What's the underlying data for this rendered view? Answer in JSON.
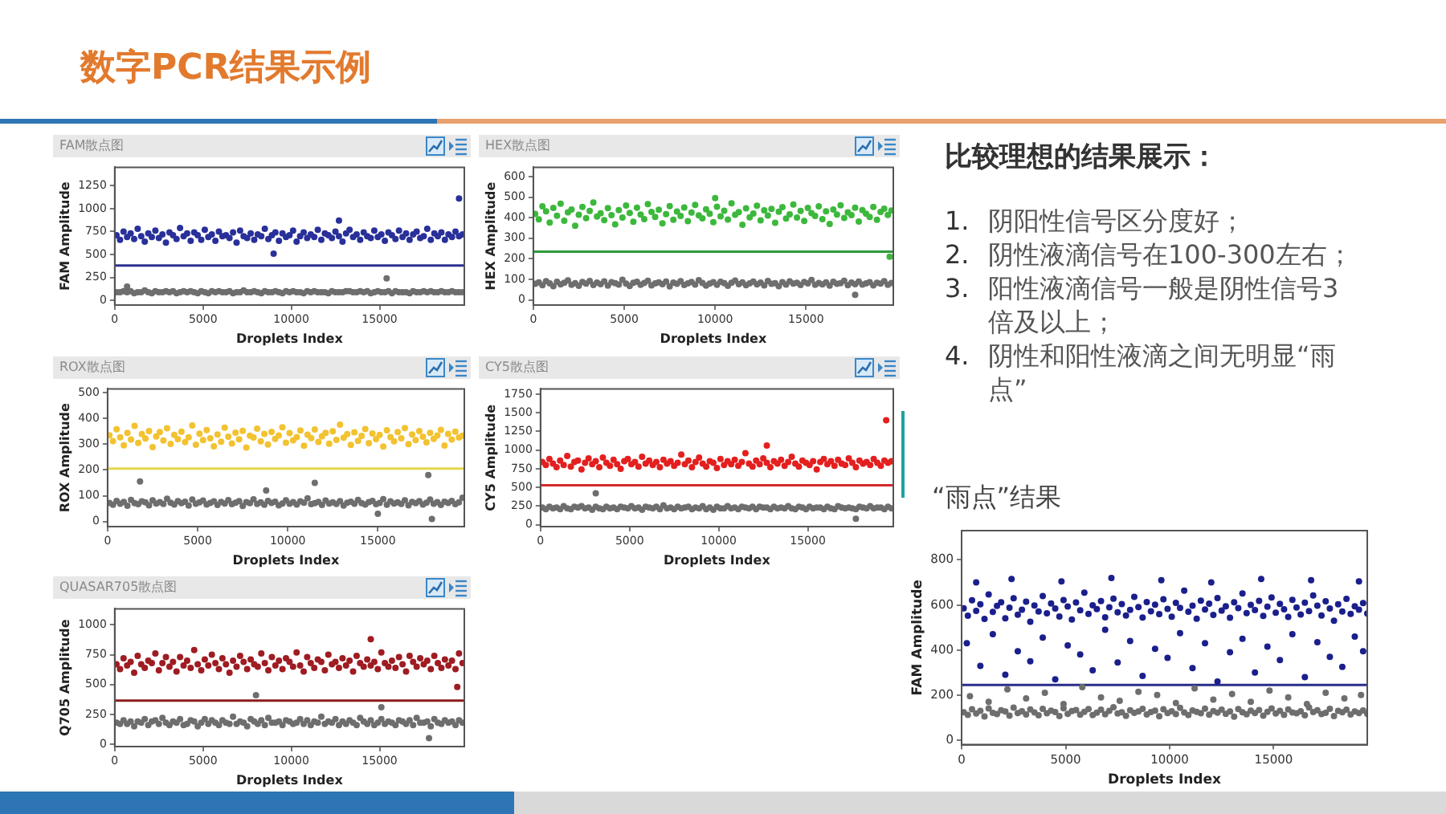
{
  "chart_data": [
    {
      "type": "other",
      "title": "数字PCR结果示例"
    },
    {
      "type": "scatter",
      "title": "FAM散点图",
      "xlabel": "Droplets Index",
      "ylabel": "FAM Amplitude",
      "marker": "circle",
      "xlim": [
        0,
        19800
      ],
      "ylim": [
        -50,
        1450
      ],
      "xticks": [
        0,
        5000,
        10000,
        15000
      ],
      "yticks": [
        0,
        250,
        500,
        750,
        1000,
        1250
      ],
      "ref_lines": [
        {
          "axis": "y",
          "value": 380,
          "color": "#2b2f8f"
        }
      ],
      "x": [
        100,
        300,
        500,
        700,
        900,
        1100,
        1300,
        1500,
        1700,
        1900,
        2100,
        2300,
        2500,
        2700,
        2900,
        3100,
        3300,
        3500,
        3700,
        3900,
        4100,
        4300,
        4500,
        4700,
        4900,
        5100,
        5300,
        5500,
        5700,
        5900,
        6100,
        6300,
        6500,
        6700,
        6900,
        7100,
        7300,
        7500,
        7700,
        7900,
        8100,
        8300,
        8500,
        8700,
        8900,
        9100,
        9300,
        9500,
        9700,
        9900,
        10100,
        10300,
        10500,
        10700,
        10900,
        11100,
        11300,
        11500,
        11700,
        11900,
        12100,
        12300,
        12500,
        12700,
        12900,
        13100,
        13300,
        13500,
        13700,
        13900,
        14100,
        14300,
        14500,
        14700,
        14900,
        15100,
        15300,
        15500,
        15700,
        15900,
        16100,
        16300,
        16500,
        16700,
        16900,
        17100,
        17300,
        17500,
        17700,
        17900,
        18100,
        18300,
        18500,
        18700,
        18900,
        19100,
        19300,
        19500,
        19700,
        19500,
        12700,
        9000,
        15400,
        700
      ],
      "series": [
        {
          "color": "#29309a",
          "values": [
            710,
            660,
            750,
            690,
            730,
            670,
            780,
            700,
            640,
            730,
            690,
            760,
            680,
            720,
            630,
            740,
            710,
            670,
            790,
            700,
            730,
            650,
            740,
            710,
            660,
            770,
            690,
            720,
            650,
            750,
            700,
            710,
            680,
            740,
            630,
            760,
            700,
            680,
            730,
            660,
            720,
            700,
            780,
            670,
            710,
            740,
            650,
            730,
            690,
            710,
            760,
            640,
            700,
            740,
            680,
            720,
            690,
            770,
            660,
            730,
            710,
            680,
            750,
            700,
            640,
            730,
            770,
            690,
            720,
            660,
            740,
            700,
            680,
            760,
            690,
            720,
            650,
            740,
            710,
            670,
            760,
            690,
            730,
            660,
            720,
            750,
            680,
            700,
            780,
            660,
            730,
            700,
            740,
            660,
            720,
            690,
            750,
            700,
            720,
            1110,
            870,
            510,
            null,
            null
          ]
        },
        {
          "color": "#6e6e6e",
          "values": [
            90,
            90,
            100,
            90,
            100,
            80,
            90,
            90,
            110,
            90,
            80,
            100,
            90,
            90,
            100,
            90,
            100,
            80,
            90,
            100,
            90,
            100,
            90,
            80,
            100,
            90,
            80,
            100,
            90,
            100,
            90,
            90,
            100,
            80,
            90,
            90,
            110,
            90,
            90,
            100,
            90,
            80,
            100,
            90,
            90,
            100,
            90,
            80,
            100,
            90,
            100,
            90,
            90,
            80,
            100,
            90,
            100,
            90,
            90,
            90,
            80,
            100,
            90,
            90,
            90,
            100,
            100,
            90,
            90,
            100,
            90,
            100,
            80,
            90,
            100,
            90,
            90,
            100,
            80,
            100,
            90,
            90,
            90,
            80,
            100,
            90,
            90,
            100,
            90,
            100,
            90,
            90,
            100,
            90,
            90,
            100,
            90,
            90,
            90,
            null,
            null,
            null,
            240,
            150
          ]
        }
      ]
    },
    {
      "type": "scatter",
      "title": "HEX散点图",
      "xlabel": "Droplets Index",
      "ylabel": "HEX Amplitude",
      "marker": "circle",
      "xlim": [
        0,
        19800
      ],
      "ylim": [
        -25,
        645
      ],
      "xticks": [
        0,
        5000,
        10000,
        15000
      ],
      "yticks": [
        0,
        100,
        200,
        300,
        400,
        500,
        600
      ],
      "ref_lines": [
        {
          "axis": "y",
          "value": 235,
          "color": "#2e9a3a"
        }
      ],
      "x": [
        100,
        300,
        500,
        700,
        900,
        1100,
        1300,
        1500,
        1700,
        1900,
        2100,
        2300,
        2500,
        2700,
        2900,
        3100,
        3300,
        3500,
        3700,
        3900,
        4100,
        4300,
        4500,
        4700,
        4900,
        5100,
        5300,
        5500,
        5700,
        5900,
        6100,
        6300,
        6500,
        6700,
        6900,
        7100,
        7300,
        7500,
        7700,
        7900,
        8100,
        8300,
        8500,
        8700,
        8900,
        9100,
        9300,
        9500,
        9700,
        9900,
        10100,
        10300,
        10500,
        10700,
        10900,
        11100,
        11300,
        11500,
        11700,
        11900,
        12100,
        12300,
        12500,
        12700,
        12900,
        13100,
        13300,
        13500,
        13700,
        13900,
        14100,
        14300,
        14500,
        14700,
        14900,
        15100,
        15300,
        15500,
        15700,
        15900,
        16100,
        16300,
        16500,
        16700,
        16900,
        17100,
        17300,
        17500,
        17700,
        17900,
        18100,
        18300,
        18500,
        18700,
        18900,
        19100,
        19300,
        19500,
        19700,
        19600,
        17700,
        10000
      ],
      "series": [
        {
          "color": "#3cb83c",
          "values": [
            418,
            392,
            455,
            431,
            376,
            447,
            409,
            468,
            385,
            426,
            440,
            361,
            414,
            452,
            398,
            433,
            474,
            405,
            421,
            388,
            446,
            412,
            367,
            437,
            401,
            459,
            423,
            380,
            448,
            415,
            393,
            466,
            428,
            404,
            439,
            372,
            417,
            456,
            390,
            430,
            408,
            449,
            383,
            425,
            462,
            411,
            397,
            441,
            419,
            378,
            453,
            406,
            434,
            391,
            470,
            414,
            427,
            365,
            445,
            402,
            420,
            458,
            387,
            436,
            410,
            443,
            375,
            429,
            451,
            396,
            416,
            464,
            401,
            433,
            384,
            447,
            422,
            408,
            455,
            393,
            431,
            369,
            440,
            415,
            460,
            399,
            426,
            412,
            448,
            381,
            437,
            419,
            404,
            452,
            390,
            428,
            444,
            413,
            435,
            210,
            null,
            495
          ]
        },
        {
          "color": "#6e6e6e",
          "values": [
            78,
            85,
            72,
            91,
            80,
            67,
            88,
            76,
            83,
            95,
            74,
            81,
            69,
            87,
            79,
            92,
            73,
            84,
            77,
            90,
            70,
            86,
            81,
            75,
            98,
            79,
            68,
            83,
            88,
            74,
            82,
            93,
            71,
            80,
            85,
            77,
            89,
            66,
            84,
            78,
            91,
            73,
            80,
            87,
            75,
            96,
            82,
            70,
            79,
            86,
            74,
            88,
            81,
            69,
            83,
            94,
            77,
            85,
            72,
            80,
            89,
            76,
            84,
            71,
            92,
            78,
            81,
            67,
            86,
            75,
            90,
            79,
            83,
            73,
            87,
            80,
            97,
            74,
            82,
            76,
            85,
            70,
            88,
            78,
            81,
            93,
            72,
            84,
            77,
            89,
            75,
            80,
            86,
            71,
            83,
            79,
            91,
            74,
            82,
            null,
            25,
            null
          ]
        }
      ]
    },
    {
      "type": "scatter",
      "title": "ROX散点图",
      "xlabel": "Droplets Index",
      "ylabel": "ROX Amplitude",
      "marker": "circle",
      "xlim": [
        0,
        19800
      ],
      "ylim": [
        -20,
        515
      ],
      "xticks": [
        0,
        5000,
        10000,
        15000
      ],
      "yticks": [
        0,
        100,
        200,
        300,
        400,
        500
      ],
      "ref_lines": [
        {
          "axis": "y",
          "value": 205,
          "color": "#e3d84c"
        }
      ],
      "x": [
        100,
        300,
        500,
        700,
        900,
        1100,
        1300,
        1500,
        1700,
        1900,
        2100,
        2300,
        2500,
        2700,
        2900,
        3100,
        3300,
        3500,
        3700,
        3900,
        4100,
        4300,
        4500,
        4700,
        4900,
        5100,
        5300,
        5500,
        5700,
        5900,
        6100,
        6300,
        6500,
        6700,
        6900,
        7100,
        7300,
        7500,
        7700,
        7900,
        8100,
        8300,
        8500,
        8700,
        8900,
        9100,
        9300,
        9500,
        9700,
        9900,
        10100,
        10300,
        10500,
        10700,
        10900,
        11100,
        11300,
        11500,
        11700,
        11900,
        12100,
        12300,
        12500,
        12700,
        12900,
        13100,
        13300,
        13500,
        13700,
        13900,
        14100,
        14300,
        14500,
        14700,
        14900,
        15100,
        15300,
        15500,
        15700,
        15900,
        16100,
        16300,
        16500,
        16700,
        16900,
        17100,
        17300,
        17500,
        17700,
        17900,
        18100,
        18300,
        18500,
        18700,
        18900,
        19100,
        19300,
        19500,
        19700,
        1800,
        11500,
        17800,
        8800,
        15000,
        18000
      ],
      "series": [
        {
          "color": "#f2c230",
          "values": [
            335,
            312,
            358,
            327,
            296,
            344,
            318,
            371,
            305,
            339,
            322,
            351,
            289,
            330,
            347,
            314,
            362,
            301,
            336,
            320,
            349,
            308,
            327,
            373,
            298,
            341,
            316,
            355,
            323,
            292,
            338,
            310,
            364,
            329,
            303,
            345,
            319,
            352,
            287,
            333,
            326,
            360,
            311,
            340,
            299,
            348,
            321,
            334,
            366,
            306,
            343,
            315,
            328,
            353,
            294,
            337,
            324,
            357,
            309,
            331,
            344,
            302,
            350,
            317,
            376,
            325,
            339,
            297,
            346,
            313,
            332,
            359,
            304,
            342,
            320,
            336,
            291,
            354,
            328,
            311,
            347,
            323,
            363,
            300,
            338,
            316,
            351,
            329,
            307,
            344,
            321,
            334,
            356,
            295,
            340,
            318,
            349,
            326,
            333,
            null,
            null,
            null,
            null,
            null,
            null
          ]
        },
        {
          "color": "#6e6e6e",
          "values": [
            72,
            65,
            80,
            69,
            76,
            61,
            84,
            71,
            67,
            78,
            74,
            63,
            82,
            70,
            75,
            68,
            88,
            73,
            66,
            79,
            71,
            77,
            62,
            85,
            69,
            74,
            81,
            66,
            72,
            78,
            64,
            76,
            70,
            83,
            67,
            73,
            79,
            60,
            75,
            71,
            86,
            68,
            74,
            65,
            80,
            72,
            77,
            63,
            70,
            82,
            69,
            75,
            66,
            78,
            73,
            90,
            67,
            71,
            76,
            64,
            81,
            70,
            74,
            68,
            79,
            62,
            73,
            77,
            69,
            84,
            71,
            66,
            75,
            80,
            67,
            72,
            87,
            65,
            78,
            70,
            74,
            68,
            82,
            63,
            76,
            71,
            79,
            66,
            73,
            85,
            69,
            75,
            64,
            77,
            72,
            80,
            67,
            74,
            92,
            155,
            150,
            180,
            120,
            30,
            10
          ]
        }
      ]
    },
    {
      "type": "scatter",
      "title": "CY5散点图",
      "xlabel": "Droplets Index",
      "ylabel": "CY5 Amplitude",
      "marker": "circle",
      "xlim": [
        0,
        19800
      ],
      "ylim": [
        -25,
        1820
      ],
      "xticks": [
        0,
        5000,
        10000,
        15000
      ],
      "yticks": [
        0,
        250,
        500,
        750,
        1000,
        1250,
        1500,
        1750
      ],
      "ref_lines": [
        {
          "axis": "y",
          "value": 530,
          "color": "#d42a2a"
        }
      ],
      "x": [
        100,
        300,
        500,
        700,
        900,
        1100,
        1300,
        1500,
        1700,
        1900,
        2100,
        2300,
        2500,
        2700,
        2900,
        3100,
        3300,
        3500,
        3700,
        3900,
        4100,
        4300,
        4500,
        4700,
        4900,
        5100,
        5300,
        5500,
        5700,
        5900,
        6100,
        6300,
        6500,
        6700,
        6900,
        7100,
        7300,
        7500,
        7700,
        7900,
        8100,
        8300,
        8500,
        8700,
        8900,
        9100,
        9300,
        9500,
        9700,
        9900,
        10100,
        10300,
        10500,
        10700,
        10900,
        11100,
        11300,
        11500,
        11700,
        11900,
        12100,
        12300,
        12500,
        12700,
        12900,
        13100,
        13300,
        13500,
        13700,
        13900,
        14100,
        14300,
        14500,
        14700,
        14900,
        15100,
        15300,
        15500,
        15700,
        15900,
        16100,
        16300,
        16500,
        16700,
        16900,
        17100,
        17300,
        17500,
        17700,
        17900,
        18100,
        18300,
        18500,
        18700,
        18900,
        19100,
        19300,
        19500,
        19700,
        19400,
        12700,
        3100,
        17700
      ],
      "series": [
        {
          "color": "#e3201f",
          "values": [
            840,
            800,
            880,
            820,
            770,
            860,
            800,
            920,
            780,
            840,
            860,
            740,
            830,
            890,
            810,
            850,
            770,
            900,
            830,
            790,
            870,
            810,
            750,
            850,
            880,
            810,
            840,
            780,
            910,
            820,
            860,
            800,
            840,
            770,
            870,
            820,
            850,
            790,
            830,
            940,
            810,
            860,
            770,
            840,
            900,
            820,
            780,
            850,
            830,
            760,
            880,
            800,
            850,
            810,
            870,
            790,
            840,
            960,
            820,
            780,
            860,
            810,
            890,
            830,
            770,
            850,
            820,
            870,
            790,
            840,
            910,
            820,
            780,
            860,
            830,
            800,
            850,
            740,
            840,
            880,
            810,
            850,
            790,
            870,
            820,
            800,
            890,
            830,
            770,
            860,
            820,
            840,
            800,
            880,
            830,
            790,
            860,
            830,
            850,
            1400,
            1060,
            null,
            null
          ]
        },
        {
          "color": "#6e6e6e",
          "values": [
            230,
            210,
            240,
            220,
            230,
            210,
            250,
            220,
            210,
            240,
            230,
            250,
            220,
            230,
            200,
            240,
            220,
            210,
            240,
            220,
            230,
            210,
            240,
            230,
            220,
            250,
            220,
            230,
            200,
            240,
            230,
            220,
            240,
            210,
            260,
            220,
            230,
            210,
            240,
            220,
            230,
            240,
            210,
            230,
            220,
            250,
            210,
            230,
            200,
            240,
            220,
            220,
            250,
            220,
            230,
            210,
            240,
            230,
            220,
            240,
            210,
            240,
            230,
            230,
            210,
            240,
            220,
            230,
            220,
            250,
            220,
            210,
            240,
            230,
            210,
            240,
            220,
            230,
            230,
            210,
            240,
            220,
            210,
            250,
            230,
            220,
            230,
            220,
            210,
            240,
            230,
            220,
            250,
            220,
            230,
            230,
            210,
            240,
            220,
            null,
            null,
            420,
            80
          ]
        }
      ]
    },
    {
      "type": "scatter",
      "title": "QUASAR705散点图",
      "xlabel": "Droplets Index",
      "ylabel": "Q705 Amplitude",
      "marker": "circle",
      "xlim": [
        0,
        19800
      ],
      "ylim": [
        -20,
        1135
      ],
      "xticks": [
        0,
        5000,
        10000,
        15000
      ],
      "yticks": [
        0,
        250,
        500,
        750,
        1000
      ],
      "ref_lines": [
        {
          "axis": "y",
          "value": 365,
          "color": "#8a1d1d"
        }
      ],
      "x": [
        100,
        300,
        500,
        700,
        900,
        1100,
        1300,
        1500,
        1700,
        1900,
        2100,
        2300,
        2500,
        2700,
        2900,
        3100,
        3300,
        3500,
        3700,
        3900,
        4100,
        4300,
        4500,
        4700,
        4900,
        5100,
        5300,
        5500,
        5700,
        5900,
        6100,
        6300,
        6500,
        6700,
        6900,
        7100,
        7300,
        7500,
        7700,
        7900,
        8100,
        8300,
        8500,
        8700,
        8900,
        9100,
        9300,
        9500,
        9700,
        9900,
        10100,
        10300,
        10500,
        10700,
        10900,
        11100,
        11300,
        11500,
        11700,
        11900,
        12100,
        12300,
        12500,
        12700,
        12900,
        13100,
        13300,
        13500,
        13700,
        13900,
        14100,
        14300,
        14500,
        14700,
        14900,
        15100,
        15300,
        15500,
        15700,
        15900,
        16100,
        16300,
        16500,
        16700,
        16900,
        17100,
        17300,
        17500,
        17700,
        17900,
        18100,
        18300,
        18500,
        18700,
        18900,
        19100,
        19300,
        19500,
        19700,
        14500,
        19400,
        8000,
        15100,
        17800
      ],
      "series": [
        {
          "color": "#9e1c22",
          "values": [
            670,
            630,
            720,
            660,
            690,
            600,
            740,
            670,
            640,
            700,
            680,
            760,
            620,
            680,
            730,
            650,
            690,
            610,
            730,
            660,
            700,
            640,
            790,
            670,
            620,
            710,
            660,
            750,
            680,
            630,
            720,
            670,
            600,
            700,
            650,
            740,
            690,
            630,
            710,
            670,
            650,
            760,
            680,
            620,
            730,
            660,
            700,
            630,
            720,
            690,
            650,
            770,
            660,
            610,
            730,
            680,
            640,
            710,
            690,
            620,
            750,
            670,
            690,
            640,
            720,
            660,
            700,
            610,
            740,
            680,
            650,
            710,
            660,
            690,
            630,
            770,
            680,
            650,
            700,
            640,
            730,
            670,
            610,
            740,
            690,
            650,
            720,
            670,
            700,
            630,
            740,
            680,
            640,
            710,
            660,
            700,
            630,
            760,
            680,
            880,
            480,
            null,
            null,
            null
          ]
        },
        {
          "color": "#6e6e6e",
          "values": [
            180,
            170,
            200,
            170,
            190,
            150,
            190,
            180,
            210,
            160,
            190,
            200,
            170,
            220,
            180,
            160,
            190,
            180,
            210,
            160,
            170,
            200,
            190,
            150,
            180,
            210,
            170,
            200,
            180,
            160,
            200,
            180,
            170,
            230,
            170,
            190,
            180,
            150,
            210,
            190,
            170,
            200,
            160,
            220,
            180,
            180,
            190,
            160,
            200,
            190,
            170,
            180,
            210,
            170,
            200,
            160,
            190,
            180,
            230,
            170,
            190,
            180,
            210,
            160,
            190,
            170,
            200,
            180,
            160,
            220,
            190,
            170,
            200,
            160,
            180,
            210,
            170,
            190,
            180,
            160,
            200,
            190,
            170,
            200,
            160,
            220,
            180,
            180,
            190,
            150,
            210,
            180,
            170,
            200,
            180,
            190,
            160,
            200,
            180,
            null,
            null,
            410,
            310,
            50
          ]
        }
      ]
    },
    {
      "type": "other",
      "title": "比较理想的结果展示：",
      "annotations": [
        "1. 阴阳性信号区分度好；",
        "2. 阴性液滴信号在100-300左右；",
        "3. 阳性液滴信号一般是阴性信号3倍及以上；",
        "4. 阴性和阳性液滴之间无明显“雨点”"
      ]
    },
    {
      "type": "scatter",
      "title": "“雨点”结果",
      "xlabel": "Droplets Index",
      "ylabel": "FAM Amplitude",
      "marker": "circle",
      "xlim": [
        0,
        19500
      ],
      "ylim": [
        -20,
        930
      ],
      "xticks": [
        0,
        5000,
        10000,
        15000
      ],
      "yticks": [
        0,
        200,
        400,
        600,
        800
      ],
      "ref_lines": [
        {
          "axis": "y",
          "value": 245,
          "color": "#2a2d8a"
        }
      ],
      "x": [
        100,
        300,
        500,
        700,
        900,
        1100,
        1300,
        1500,
        1700,
        1900,
        2100,
        2300,
        2500,
        2700,
        2900,
        3100,
        3300,
        3500,
        3700,
        3900,
        4100,
        4300,
        4500,
        4700,
        4900,
        5100,
        5300,
        5500,
        5700,
        5900,
        6100,
        6300,
        6500,
        6700,
        6900,
        7100,
        7300,
        7500,
        7700,
        7900,
        8100,
        8300,
        8500,
        8700,
        8900,
        9100,
        9300,
        9500,
        9700,
        9900,
        10100,
        10300,
        10500,
        10700,
        10900,
        11100,
        11300,
        11500,
        11700,
        11900,
        12100,
        12300,
        12500,
        12700,
        12900,
        13100,
        13300,
        13500,
        13700,
        13900,
        14100,
        14300,
        14500,
        14700,
        14900,
        15100,
        15300,
        15500,
        15700,
        15900,
        16100,
        16300,
        16500,
        16700,
        16900,
        17100,
        17300,
        17500,
        17700,
        17900,
        18100,
        18300,
        18500,
        18700,
        18900,
        19100,
        19300,
        19500,
        250,
        900,
        1500,
        2100,
        2700,
        3300,
        3900,
        4500,
        5100,
        5700,
        6300,
        6900,
        7500,
        8100,
        8700,
        9300,
        9900,
        10500,
        11100,
        11700,
        12300,
        12900,
        13500,
        14100,
        14700,
        15300,
        15900,
        16500,
        17100,
        17700,
        18300,
        18900,
        19300,
        700,
        2400,
        4800,
        7200,
        9600,
        12000,
        14400,
        16800,
        19100,
        400,
        1300,
        2200,
        3100,
        4000,
        4900,
        5800,
        6700,
        7600,
        8500,
        9400,
        10300,
        11200,
        12100,
        13000,
        13900,
        14800,
        15700,
        16600,
        17500,
        18400,
        19200
      ],
      "series": [
        {
          "color": "#1b1f8c",
          "values": [
            585,
            552,
            621,
            574,
            603,
            538,
            647,
            569,
            596,
            612,
            541,
            588,
            630,
            557,
            579,
            615,
            526,
            598,
            571,
            640,
            563,
            607,
            584,
            549,
            622,
            593,
            535,
            611,
            576,
            655,
            560,
            599,
            582,
            617,
            545,
            590,
            628,
            567,
            604,
            553,
            578,
            636,
            591,
            544,
            613,
            572,
            601,
            559,
            625,
            583,
            548,
            609,
            587,
            664,
            570,
            597,
            539,
            619,
            580,
            606,
            556,
            631,
            575,
            594,
            543,
            612,
            586,
            651,
            564,
            600,
            577,
            618,
            551,
            592,
            633,
            566,
            605,
            581,
            547,
            623,
            589,
            558,
            610,
            573,
            642,
            597,
            553,
            616,
            584,
            530,
            603,
            571,
            627,
            560,
            594,
            579,
            608,
            562,
            430,
            330,
            470,
            290,
            395,
            350,
            455,
            270,
            420,
            380,
            310,
            490,
            345,
            440,
            285,
            405,
            365,
            475,
            320,
            430,
            260,
            390,
            450,
            300,
            415,
            355,
            470,
            280,
            435,
            370,
            325,
            460,
            395,
            700,
            715,
            705,
            720,
            710,
            700,
            715,
            710,
            705,
            null,
            null,
            null,
            null,
            null,
            null,
            null,
            null,
            null,
            null,
            null,
            null,
            null,
            null,
            null,
            null,
            null,
            null,
            null,
            null,
            null,
            null
          ]
        },
        {
          "color": "#6e6e6e",
          "values": [
            124,
            112,
            137,
            118,
            130,
            105,
            141,
            121,
            116,
            133,
            127,
            109,
            144,
            120,
            128,
            114,
            136,
            123,
            110,
            139,
            119,
            131,
            125,
            107,
            142,
            117,
            129,
            134,
            113,
            126,
            138,
            111,
            122,
            135,
            115,
            130,
            146,
            118,
            124,
            108,
            133,
            121,
            127,
            139,
            114,
            125,
            131,
            106,
            137,
            120,
            128,
            116,
            143,
            123,
            111,
            132,
            126,
            119,
            140,
            113,
            129,
            122,
            135,
            117,
            127,
            104,
            138,
            124,
            115,
            131,
            120,
            134,
            109,
            126,
            141,
            118,
            130,
            112,
            136,
            123,
            119,
            128,
            110,
            145,
            125,
            133,
            116,
            121,
            139,
            107,
            130,
            124,
            135,
            114,
            127,
            120,
            132,
            117,
            null,
            null,
            null,
            null,
            null,
            null,
            null,
            null,
            null,
            null,
            null,
            null,
            null,
            null,
            null,
            null,
            null,
            null,
            null,
            null,
            null,
            null,
            null,
            null,
            null,
            null,
            null,
            null,
            null,
            null,
            null,
            null,
            null,
            null,
            null,
            null,
            null,
            null,
            null,
            null,
            null,
            null,
            195,
            170,
            225,
            185,
            210,
            160,
            235,
            190,
            175,
            215,
            200,
            165,
            230,
            180,
            205,
            170,
            220,
            190,
            160,
            210,
            185,
            200
          ]
        }
      ]
    }
  ]
}
